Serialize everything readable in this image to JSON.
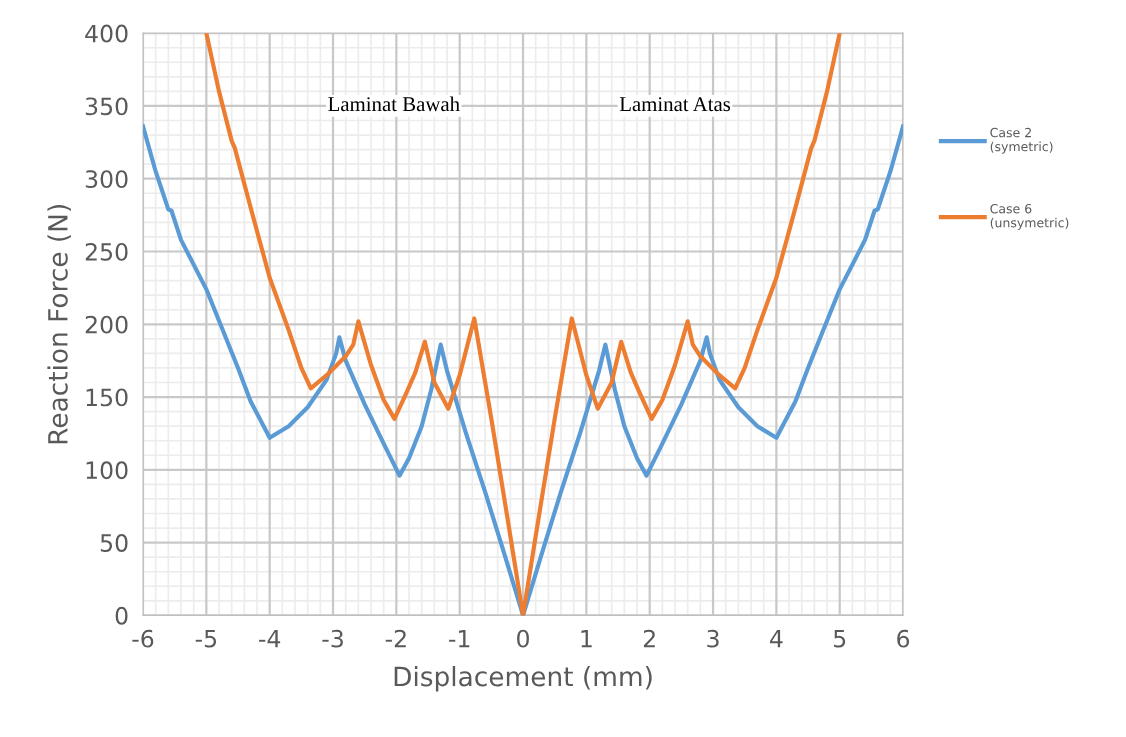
{
  "chart_data": {
    "type": "line",
    "xlabel": "Displacement (mm)",
    "ylabel": "Reaction Force (N)",
    "xlim": [
      -6,
      6
    ],
    "xticks": [
      -6,
      -5,
      -4,
      -3,
      -2,
      -1,
      0,
      1,
      2,
      3,
      4,
      5,
      6
    ],
    "ylim": [
      0,
      400
    ],
    "yticks": [
      0,
      50,
      100,
      150,
      200,
      250,
      300,
      350,
      400
    ],
    "grid": true,
    "legend": "right",
    "line_style": "solid",
    "marker": "none",
    "annotations": [
      "Laminat Bawah",
      "Laminat Atas"
    ],
    "series": [
      {
        "name": "Case 2\n(symetric)",
        "color": "#5b9bd5",
        "x": [
          -6,
          -5.8,
          -5.6,
          -5.55,
          -5.4,
          -5,
          -4.5,
          -4.3,
          -4,
          -3.7,
          -3.4,
          -3.1,
          -2.95,
          -2.9,
          -2.8,
          -2.5,
          -2.2,
          -1.95,
          -1.8,
          -1.6,
          -1.45,
          -1.3,
          -1.2,
          -0.9,
          -0.6,
          -0.3,
          0,
          0.3,
          0.6,
          0.9,
          1.2,
          1.3,
          1.45,
          1.6,
          1.8,
          1.95,
          2.2,
          2.5,
          2.8,
          2.9,
          2.95,
          3.1,
          3.4,
          3.7,
          4,
          4.3,
          4.5,
          5,
          5.4,
          5.55,
          5.6,
          5.8,
          6
        ],
        "values": [
          336,
          305,
          279,
          278,
          258,
          224,
          170,
          147,
          122,
          130,
          143,
          162,
          180,
          191,
          175,
          145,
          118,
          96,
          108,
          130,
          155,
          186,
          168,
          125,
          85,
          43,
          0,
          43,
          85,
          125,
          168,
          186,
          155,
          130,
          108,
          96,
          118,
          145,
          175,
          191,
          180,
          162,
          143,
          130,
          122,
          147,
          170,
          224,
          258,
          278,
          279,
          305,
          336
        ]
      },
      {
        "name": "Case 6\n(unsymetric)",
        "color": "#ed7d31",
        "x": [
          -5,
          -4.8,
          -4.6,
          -4.55,
          -4.3,
          -4,
          -3.7,
          -3.5,
          -3.35,
          -3.1,
          -2.8,
          -2.68,
          -2.6,
          -2.4,
          -2.2,
          -2.03,
          -1.85,
          -1.7,
          -1.55,
          -1.4,
          -1.18,
          -1,
          -0.77,
          -0.5,
          -0.25,
          0,
          0.25,
          0.5,
          0.77,
          1,
          1.18,
          1.4,
          1.55,
          1.7,
          1.85,
          2.03,
          2.2,
          2.4,
          2.6,
          2.68,
          2.8,
          3.1,
          3.35,
          3.5,
          3.7,
          4,
          4.3,
          4.55,
          4.6,
          4.8,
          5
        ],
        "values": [
          400,
          360,
          326,
          321,
          280,
          232,
          196,
          170,
          156,
          165,
          178,
          186,
          202,
          172,
          148,
          135,
          152,
          167,
          188,
          160,
          142,
          165,
          204,
          135,
          68,
          0,
          68,
          135,
          204,
          165,
          142,
          160,
          188,
          167,
          152,
          135,
          148,
          172,
          202,
          186,
          178,
          165,
          156,
          170,
          196,
          232,
          280,
          321,
          326,
          360,
          400
        ]
      }
    ]
  }
}
